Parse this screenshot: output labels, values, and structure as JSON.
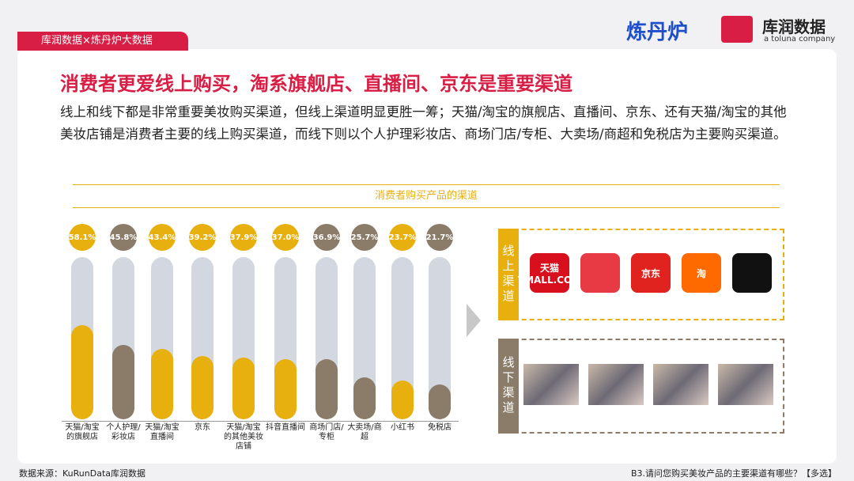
{
  "header": {
    "tag": "库润数据×炼丹炉大数据",
    "logo_left": "炼丹炉",
    "logo_right": "库润数据",
    "logo_right_sub": "a toluna company"
  },
  "title": "消费者更爱线上购买，淘系旗舰店、直播间、京东是重要渠道",
  "paragraph": "线上和线下都是非常重要美妆购买渠道，但线上渠道明显更胜一筹；天猫/淘宝的旗舰店、直播间、京东、还有天猫/淘宝的其他美妆店铺是消费者主要的线上购买渠道，而线下则以个人护理彩妆店、商场门店/专柜、大卖场/商超和免税店为主要购买渠道。",
  "chart_data": {
    "type": "bar",
    "title": "消费者购买产品的渠道",
    "categories": [
      "天猫/淘宝的旗舰店",
      "个人护理/彩妆店",
      "天猫/淘宝直播间",
      "京东",
      "天猫/淘宝的其他美妆店铺",
      "抖音直播间",
      "商场门店/专柜",
      "大卖场/商超",
      "小红书",
      "免税店"
    ],
    "values": [
      58.1,
      45.8,
      43.4,
      39.2,
      37.9,
      37.0,
      36.9,
      25.7,
      23.7,
      21.7
    ],
    "value_labels": [
      "58.1%",
      "45.8%",
      "43.4%",
      "39.2%",
      "37.9%",
      "37.0%",
      "36.9%",
      "25.7%",
      "23.7%",
      "21.7%"
    ],
    "colors": [
      "#e8b00e",
      "#8b7b69",
      "#e8b00e",
      "#e8b00e",
      "#e8b00e",
      "#e8b00e",
      "#8b7b69",
      "#8b7b69",
      "#e8b00e",
      "#8b7b69"
    ],
    "track_color": "#d3d7df",
    "ylim": [
      0,
      100
    ]
  },
  "online": {
    "label": "线上渠道",
    "icons": [
      "天猫 TMALL.COM",
      "",
      "京东",
      "淘",
      ""
    ]
  },
  "offline": {
    "label": "线下渠道"
  },
  "footer": {
    "source": "数据来源：KuRunData库润数据",
    "question": "B3.请问您购买美妆产品的主要渠道有哪些？【多选】"
  }
}
